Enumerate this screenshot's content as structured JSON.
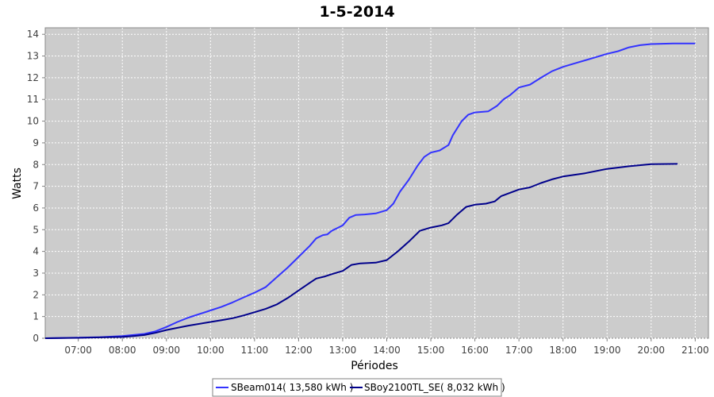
{
  "chart_data": {
    "type": "line",
    "title": "1-5-2014",
    "xlabel": "Périodes",
    "ylabel": "Watts",
    "xlim": [
      6.25,
      21.3
    ],
    "ylim": [
      0,
      14.3
    ],
    "y_ticks": [
      0,
      1,
      2,
      3,
      4,
      5,
      6,
      7,
      8,
      9,
      10,
      11,
      12,
      13,
      14
    ],
    "x_ticks": [
      {
        "value": 7,
        "label": "07:00"
      },
      {
        "value": 8,
        "label": "08:00"
      },
      {
        "value": 9,
        "label": "09:00"
      },
      {
        "value": 10,
        "label": "10:00"
      },
      {
        "value": 11,
        "label": "11:00"
      },
      {
        "value": 12,
        "label": "12:00"
      },
      {
        "value": 13,
        "label": "13:00"
      },
      {
        "value": 14,
        "label": "14:00"
      },
      {
        "value": 15,
        "label": "15:00"
      },
      {
        "value": 16,
        "label": "16:00"
      },
      {
        "value": 17,
        "label": "17:00"
      },
      {
        "value": 18,
        "label": "18:00"
      },
      {
        "value": 19,
        "label": "19:00"
      },
      {
        "value": 20,
        "label": "20:00"
      },
      {
        "value": 21,
        "label": "21:00"
      }
    ],
    "grid": true,
    "legend_position": "bottom",
    "series": [
      {
        "name": "SBeam014( 13,580 kWh )",
        "color": "#3333ff",
        "points": [
          [
            6.25,
            0
          ],
          [
            7.0,
            0.03
          ],
          [
            7.5,
            0.05
          ],
          [
            8.0,
            0.1
          ],
          [
            8.25,
            0.15
          ],
          [
            8.5,
            0.2
          ],
          [
            8.75,
            0.32
          ],
          [
            9.0,
            0.52
          ],
          [
            9.25,
            0.75
          ],
          [
            9.5,
            0.95
          ],
          [
            10.0,
            1.28
          ],
          [
            10.25,
            1.45
          ],
          [
            10.5,
            1.65
          ],
          [
            10.75,
            1.88
          ],
          [
            11.0,
            2.1
          ],
          [
            11.25,
            2.35
          ],
          [
            11.5,
            2.8
          ],
          [
            11.75,
            3.25
          ],
          [
            12.0,
            3.75
          ],
          [
            12.25,
            4.25
          ],
          [
            12.4,
            4.6
          ],
          [
            12.55,
            4.75
          ],
          [
            12.65,
            4.78
          ],
          [
            12.75,
            4.95
          ],
          [
            12.9,
            5.1
          ],
          [
            13.0,
            5.2
          ],
          [
            13.15,
            5.55
          ],
          [
            13.3,
            5.68
          ],
          [
            13.5,
            5.7
          ],
          [
            13.75,
            5.75
          ],
          [
            14.0,
            5.9
          ],
          [
            14.15,
            6.2
          ],
          [
            14.3,
            6.75
          ],
          [
            14.5,
            7.3
          ],
          [
            14.7,
            7.95
          ],
          [
            14.85,
            8.35
          ],
          [
            15.0,
            8.55
          ],
          [
            15.2,
            8.65
          ],
          [
            15.4,
            8.9
          ],
          [
            15.5,
            9.35
          ],
          [
            15.7,
            10.0
          ],
          [
            15.85,
            10.3
          ],
          [
            16.0,
            10.4
          ],
          [
            16.3,
            10.45
          ],
          [
            16.5,
            10.7
          ],
          [
            16.65,
            11.0
          ],
          [
            16.8,
            11.2
          ],
          [
            17.0,
            11.55
          ],
          [
            17.25,
            11.68
          ],
          [
            17.5,
            12.0
          ],
          [
            17.75,
            12.3
          ],
          [
            18.0,
            12.5
          ],
          [
            18.25,
            12.65
          ],
          [
            18.5,
            12.8
          ],
          [
            18.75,
            12.95
          ],
          [
            19.0,
            13.1
          ],
          [
            19.25,
            13.22
          ],
          [
            19.5,
            13.4
          ],
          [
            19.75,
            13.5
          ],
          [
            20.0,
            13.55
          ],
          [
            20.5,
            13.58
          ],
          [
            21.0,
            13.58
          ]
        ]
      },
      {
        "name": "SBoy2100TL_SE( 8,032 kWh )",
        "color": "#00008b",
        "points": [
          [
            6.25,
            0
          ],
          [
            7.0,
            0.02
          ],
          [
            7.5,
            0.04
          ],
          [
            8.0,
            0.06
          ],
          [
            8.25,
            0.1
          ],
          [
            8.5,
            0.15
          ],
          [
            8.75,
            0.25
          ],
          [
            9.0,
            0.38
          ],
          [
            9.5,
            0.58
          ],
          [
            10.0,
            0.75
          ],
          [
            10.25,
            0.83
          ],
          [
            10.5,
            0.92
          ],
          [
            10.75,
            1.05
          ],
          [
            11.0,
            1.2
          ],
          [
            11.25,
            1.35
          ],
          [
            11.5,
            1.55
          ],
          [
            11.75,
            1.85
          ],
          [
            12.0,
            2.2
          ],
          [
            12.25,
            2.55
          ],
          [
            12.4,
            2.75
          ],
          [
            12.6,
            2.85
          ],
          [
            12.75,
            2.95
          ],
          [
            13.0,
            3.1
          ],
          [
            13.2,
            3.38
          ],
          [
            13.4,
            3.45
          ],
          [
            13.75,
            3.48
          ],
          [
            14.0,
            3.6
          ],
          [
            14.25,
            4.0
          ],
          [
            14.5,
            4.45
          ],
          [
            14.75,
            4.95
          ],
          [
            15.0,
            5.1
          ],
          [
            15.25,
            5.2
          ],
          [
            15.4,
            5.3
          ],
          [
            15.6,
            5.7
          ],
          [
            15.8,
            6.05
          ],
          [
            16.0,
            6.15
          ],
          [
            16.25,
            6.2
          ],
          [
            16.45,
            6.3
          ],
          [
            16.6,
            6.55
          ],
          [
            16.8,
            6.7
          ],
          [
            17.0,
            6.85
          ],
          [
            17.25,
            6.95
          ],
          [
            17.5,
            7.15
          ],
          [
            17.75,
            7.32
          ],
          [
            18.0,
            7.45
          ],
          [
            18.5,
            7.6
          ],
          [
            19.0,
            7.8
          ],
          [
            19.5,
            7.92
          ],
          [
            20.0,
            8.02
          ],
          [
            20.6,
            8.03
          ]
        ]
      }
    ]
  }
}
